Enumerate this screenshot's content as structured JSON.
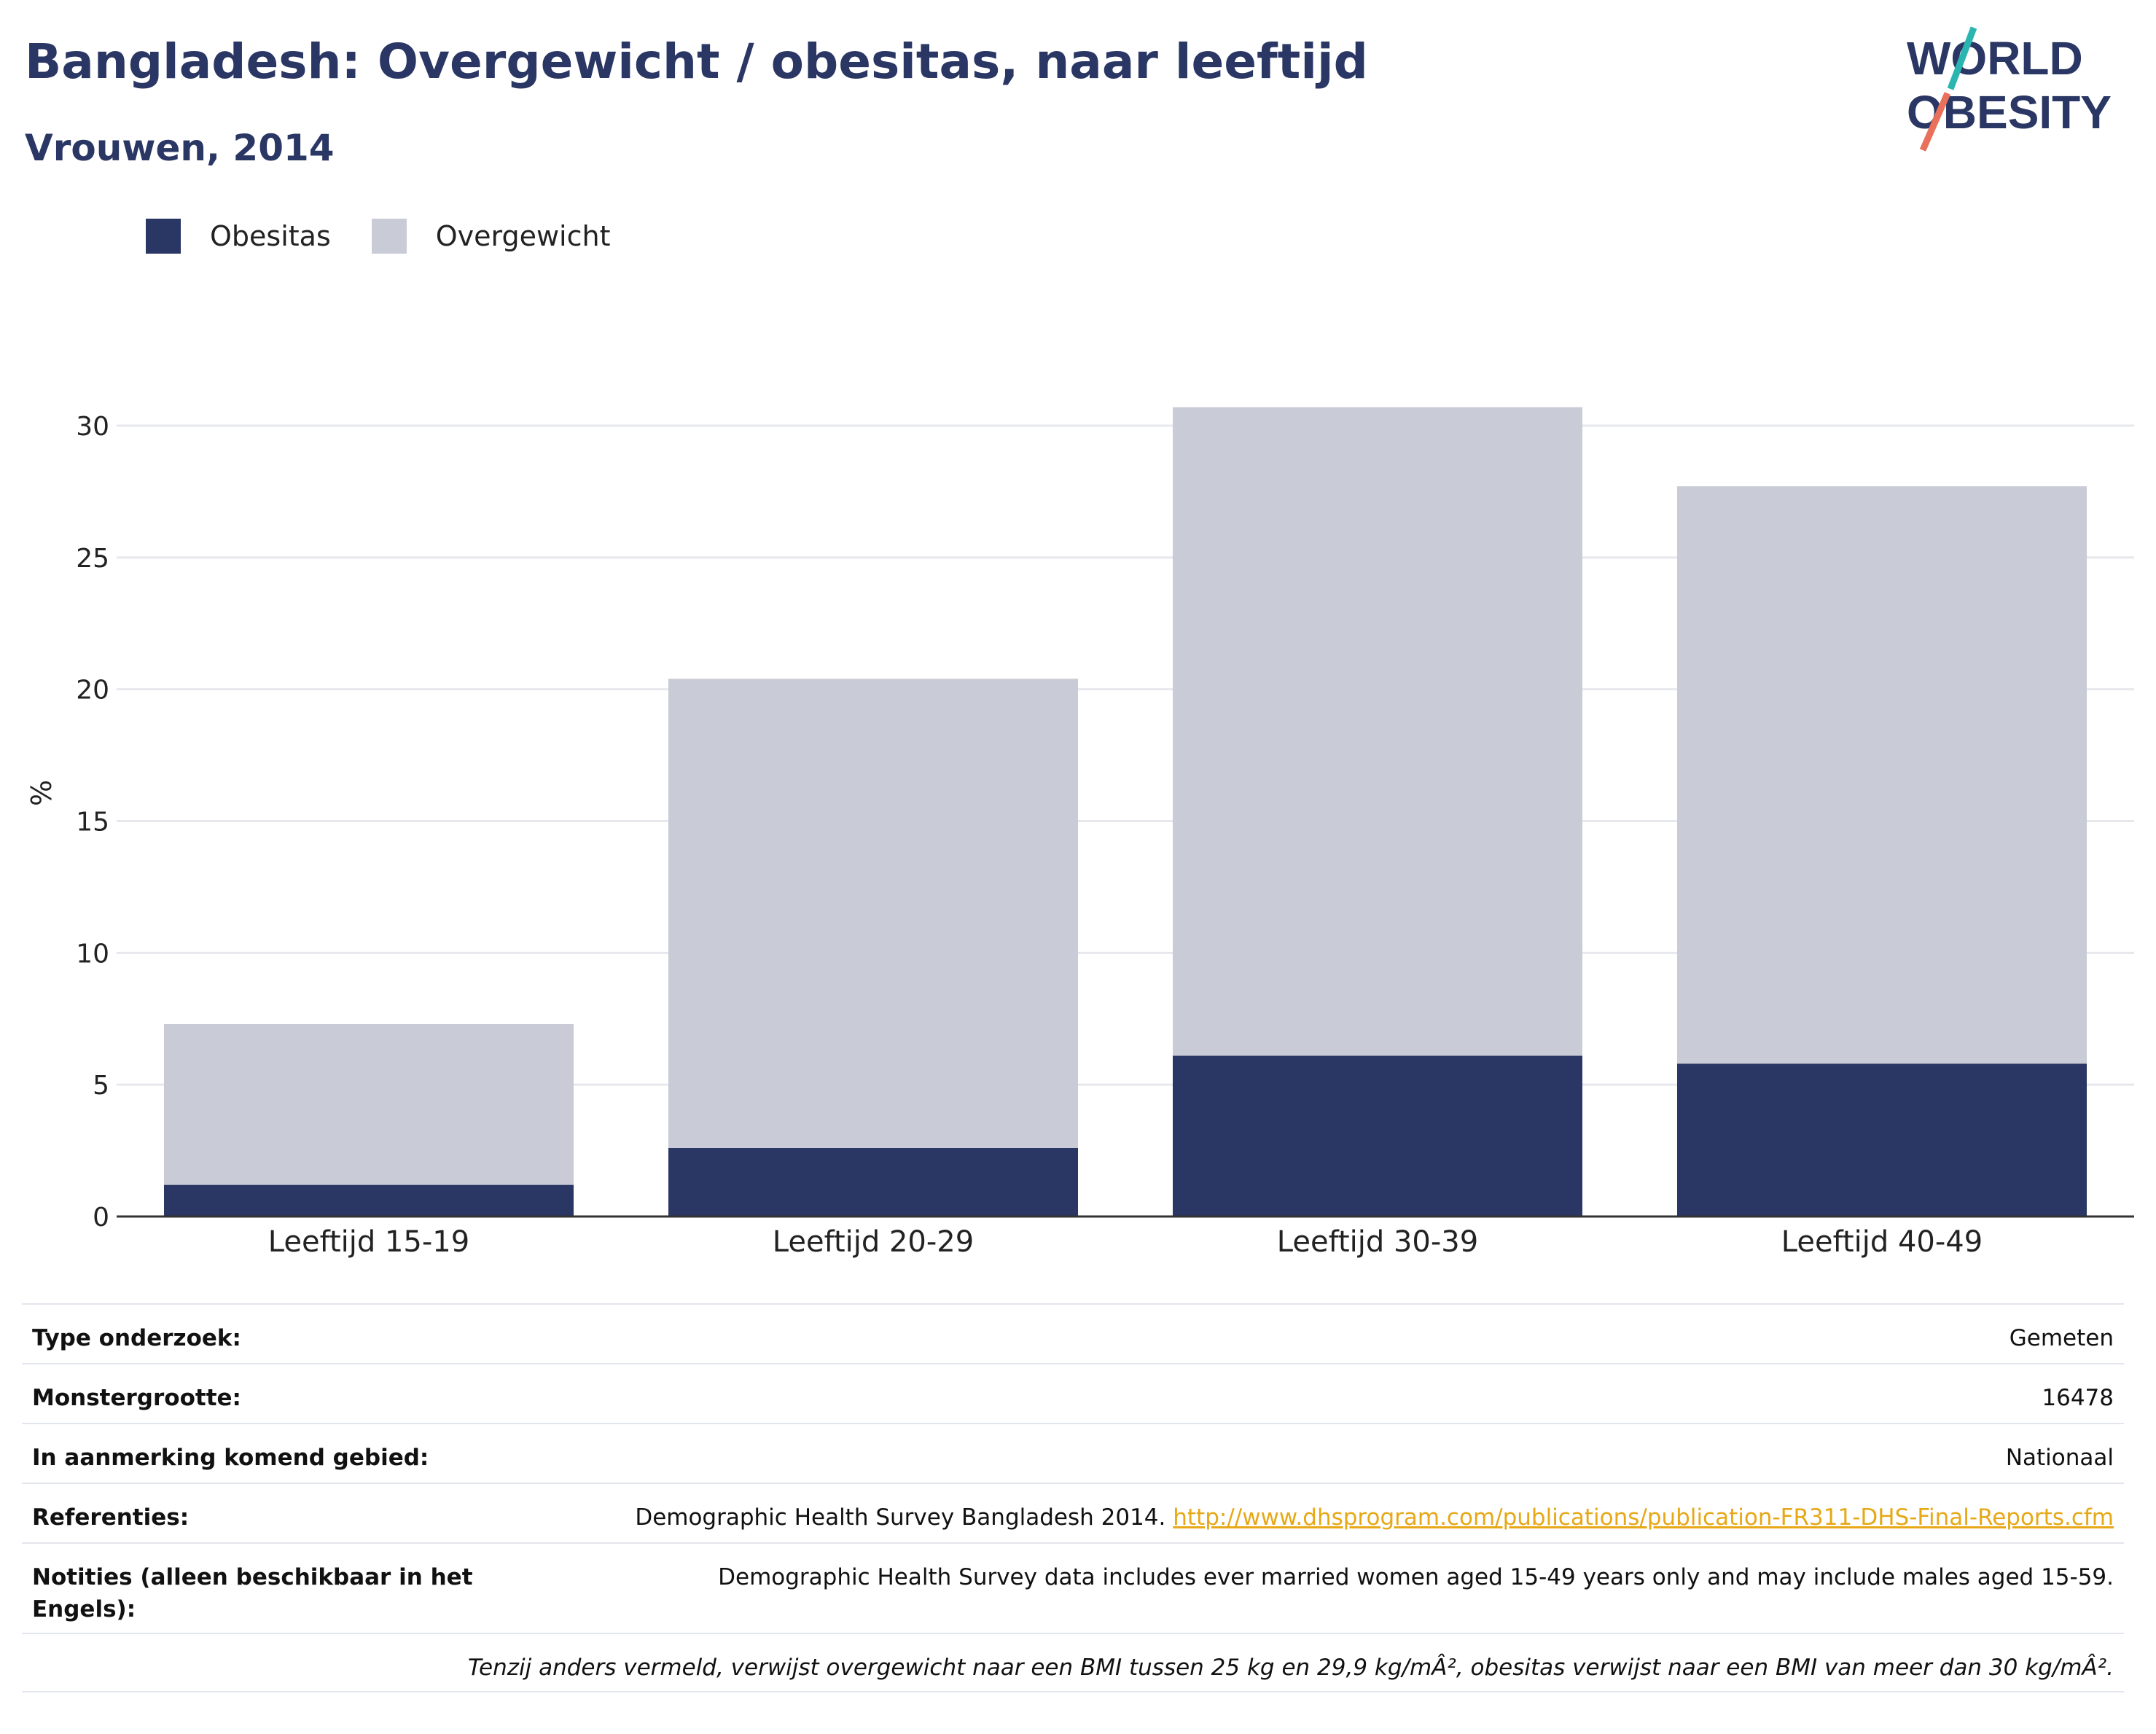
{
  "header": {
    "title": "Bangladesh: Overgewicht / obesitas, naar leeftijd",
    "subtitle": "Vrouwen, 2014",
    "logo_line1": "WORLD",
    "logo_line2": "OBESITY"
  },
  "legend": {
    "items": [
      {
        "label": "Obesitas",
        "color": "#2a3663"
      },
      {
        "label": "Overgewicht",
        "color": "#c9ccd6"
      }
    ]
  },
  "chart_data": {
    "type": "bar",
    "stacked": true,
    "categories": [
      "Leeftijd 15-19",
      "Leeftijd 20-29",
      "Leeftijd 30-39",
      "Leeftijd 40-49"
    ],
    "series": [
      {
        "name": "Obesitas",
        "color": "#2a3663",
        "values": [
          1.2,
          2.6,
          6.1,
          5.8
        ]
      },
      {
        "name": "Overgewicht",
        "color": "#c9ccd6",
        "values": [
          6.1,
          17.8,
          24.6,
          21.9
        ]
      }
    ],
    "ylabel": "%",
    "ylim": [
      0,
      32.5
    ],
    "yticks": [
      0,
      5,
      10,
      15,
      20,
      25,
      30
    ],
    "grid": true,
    "legend_position": "top-left"
  },
  "info": {
    "rows": [
      {
        "key": "Type onderzoek:",
        "value": "Gemeten"
      },
      {
        "key": "Monstergrootte:",
        "value": "16478"
      },
      {
        "key": "In aanmerking komend gebied:",
        "value": "Nationaal"
      }
    ],
    "references": {
      "key": "Referenties:",
      "text": "Demographic Health Survey Bangladesh 2014.",
      "link": "http://www.dhsprogram.com/publications/publication-FR311-DHS-Final-Reports.cfm"
    },
    "notes": {
      "key": "Notities (alleen beschikbaar in het Engels):",
      "value": "Demographic Health Survey data includes ever married women aged 15-49 years only and may include males aged 15-59."
    },
    "footnote": "Tenzij anders vermeld, verwijst overgewicht naar een BMI tussen 25 kg en 29,9 kg/mÂ², obesitas verwijst naar een BMI van meer dan 30 kg/mÂ²."
  }
}
